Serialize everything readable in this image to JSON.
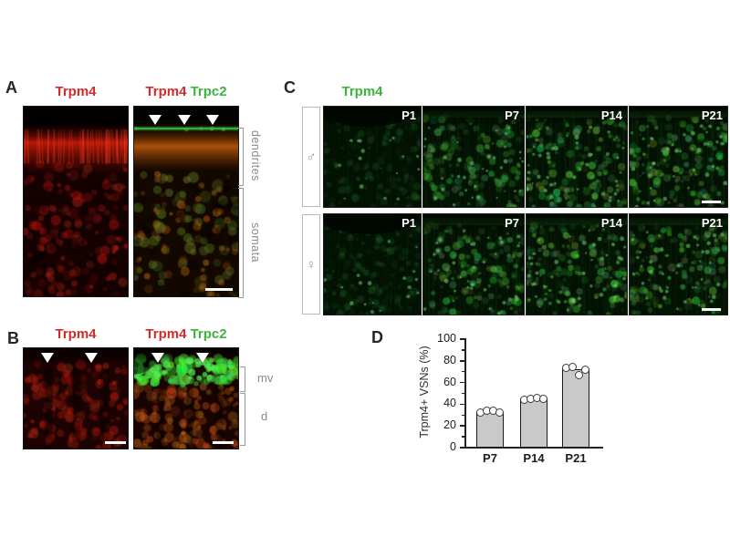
{
  "panels": {
    "A": {
      "label": "A",
      "left_title": "Trpm4",
      "right_title_red": "Trpm4",
      "right_title_green": "Trpc2",
      "bracket_top": "dendrites",
      "bracket_bottom": "somata"
    },
    "B": {
      "label": "B",
      "left_title": "Trpm4",
      "right_title_red": "Trpm4",
      "right_title_green": "Trpc2",
      "bracket_top": "mv",
      "bracket_bottom": "d"
    },
    "C": {
      "label": "C",
      "title": "Trpm4",
      "rows": [
        {
          "sex": "male",
          "sex_symbol": "♂",
          "ages": [
            "P1",
            "P7",
            "P14",
            "P21"
          ]
        },
        {
          "sex": "female",
          "sex_symbol": "♀",
          "ages": [
            "P1",
            "P7",
            "P14",
            "P21"
          ]
        }
      ]
    },
    "D": {
      "label": "D"
    }
  },
  "chart_data": {
    "type": "bar",
    "categories": [
      "P7",
      "P14",
      "P21"
    ],
    "values": [
      33,
      45,
      72
    ],
    "points_by_category": [
      [
        32.5,
        34,
        34.5,
        33
      ],
      [
        44.5,
        45.5,
        46,
        45
      ],
      [
        74,
        75,
        67,
        72
      ]
    ],
    "ylabel": "Trpm4+ VSNs (%)",
    "xlabel": "",
    "ylim": [
      0,
      100
    ],
    "yticks": [
      0,
      20,
      40,
      60,
      80,
      100
    ],
    "minor_yticks": [
      10,
      30,
      50,
      70,
      90
    ],
    "bar_fill": "#c9c9c9",
    "bar_border": "#1a1a1a",
    "point_style": "open-circle",
    "grid": false,
    "legend": false
  },
  "colors": {
    "trpm4_red": "#d62a2a",
    "trpc2_green": "#3cb43c",
    "side_label_gray": "#8a8a8a",
    "scalebar_white": "#ffffff"
  }
}
